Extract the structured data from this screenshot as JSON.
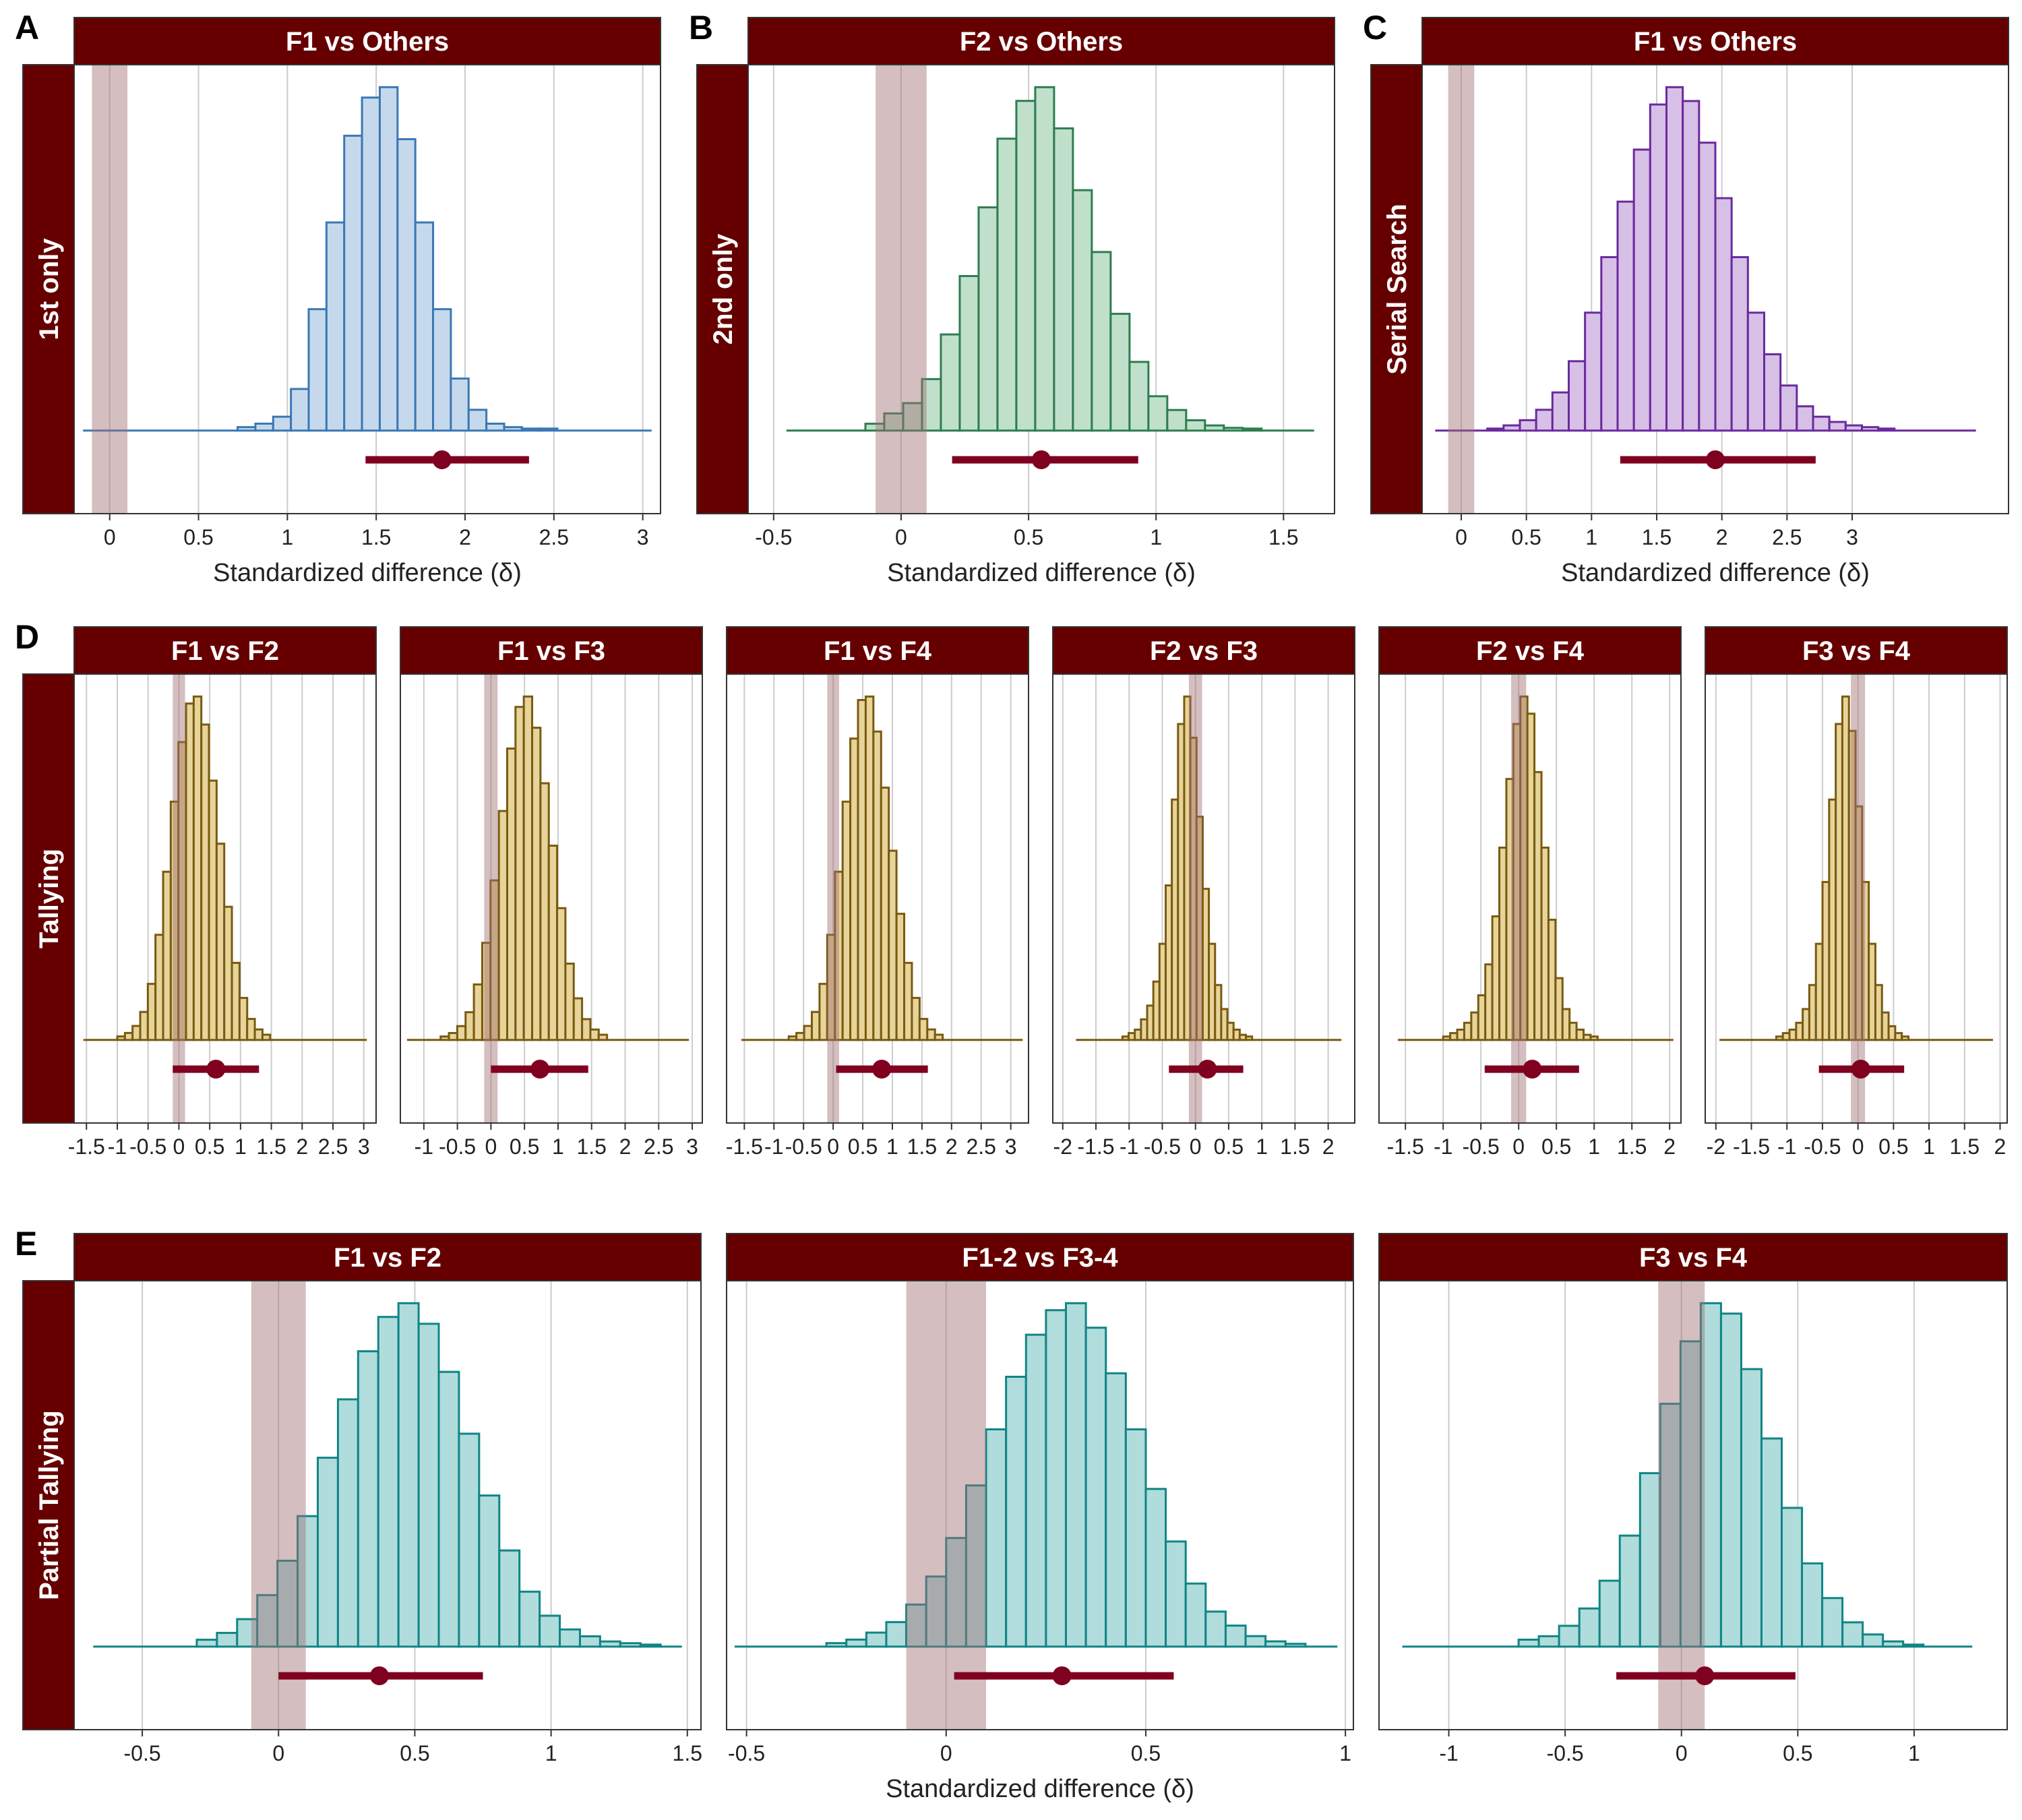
{
  "theme": {
    "strip_color": "#660000",
    "rope_color": "#a06e73",
    "interval_color": "#800020",
    "grid_color": "#cccccc",
    "axis_color": "#333333"
  },
  "chart_data": [
    {
      "id": "A",
      "letter": "A",
      "type": "bar",
      "row_label": "1st only",
      "title": "F1 vs Others",
      "xlabel": "Standardized difference (δ)",
      "xlim": [
        -0.2,
        3.1
      ],
      "xticks": [
        0,
        0.5,
        1,
        1.5,
        2,
        2.5,
        3
      ],
      "xtick_labels": [
        "0",
        "0.5",
        "1",
        "1.5",
        "2",
        "2.5",
        "3"
      ],
      "fill": "#c6d9ec",
      "stroke": "#3b78b4",
      "rope": [
        -0.1,
        0.1
      ],
      "interval": {
        "lower": 1.44,
        "point": 1.87,
        "upper": 2.36
      },
      "hist": {
        "start": 0.72,
        "bin_width": 0.1,
        "tail_left": -0.15,
        "tail_right": 3.05,
        "tail_level": 1,
        "counts": [
          1,
          2,
          4,
          12,
          35,
          60,
          85,
          96,
          99,
          84,
          60,
          35,
          15,
          6,
          2,
          1,
          0.5,
          0.3
        ]
      }
    },
    {
      "id": "B",
      "letter": "B",
      "type": "bar",
      "row_label": "2nd only",
      "title": "F2 vs Others",
      "xlabel": "Standardized difference (δ)",
      "xlim": [
        -0.6,
        1.7
      ],
      "xticks": [
        -0.5,
        0,
        0.5,
        1,
        1.5
      ],
      "xtick_labels": [
        "-0.5",
        "0",
        "0.5",
        "1",
        "1.5"
      ],
      "fill": "#c0e0cc",
      "stroke": "#2e7d4f",
      "rope": [
        -0.1,
        0.1
      ],
      "interval": {
        "lower": 0.2,
        "point": 0.55,
        "upper": 0.93
      },
      "hist": {
        "start": -0.14,
        "bin_width": 0.074,
        "tail_left": -0.45,
        "tail_right": 1.62,
        "tail_level": 0.5,
        "counts": [
          2,
          5,
          8,
          15,
          28,
          45,
          65,
          85,
          96,
          100,
          88,
          70,
          52,
          34,
          20,
          10,
          6,
          3,
          1.5,
          0.8,
          0.4
        ]
      }
    },
    {
      "id": "C",
      "letter": "C",
      "type": "bar",
      "row_label": "Serial Search",
      "title": "F1 vs Others",
      "xlabel": "Standardized difference (δ)",
      "xlim": [
        -0.3,
        4.2
      ],
      "xticks": [
        0,
        0.5,
        1,
        1.5,
        2,
        2.5,
        3
      ],
      "xtick_labels": [
        "0",
        "0.5",
        "1",
        "1.5",
        "2",
        "2.5",
        "3"
      ],
      "fill": "#d7c0e6",
      "stroke": "#6a2a9e",
      "rope": [
        -0.1,
        0.1
      ],
      "interval": {
        "lower": 1.22,
        "point": 1.95,
        "upper": 2.72
      },
      "hist": {
        "start": 0.2,
        "bin_width": 0.125,
        "tail_left": -0.2,
        "tail_right": 3.95,
        "tail_level": 1,
        "counts": [
          0.5,
          1.5,
          3,
          6,
          11,
          20,
          34,
          50,
          66,
          81,
          94,
          99,
          95,
          83,
          67,
          50,
          34,
          22,
          13,
          7,
          4,
          2.5,
          1.5,
          1,
          0.5
        ]
      }
    },
    {
      "id": "D1",
      "letter": "D",
      "type": "bar",
      "row_label": "Tallying",
      "title": "F1 vs F2",
      "xlabel": "",
      "xlim": [
        -1.7,
        3.2
      ],
      "xticks": [
        -1.5,
        -1,
        -0.5,
        0,
        0.5,
        1,
        1.5,
        2,
        2.5,
        3
      ],
      "xtick_labels": [
        "-1.5",
        "-1",
        "-0.5",
        "0",
        "0.5",
        "1",
        "1.5",
        "2",
        "2.5",
        "3"
      ],
      "fill": "#e6d49a",
      "stroke": "#7a5a10",
      "rope": [
        -0.1,
        0.1
      ],
      "interval": {
        "lower": -0.1,
        "point": 0.6,
        "upper": 1.3
      },
      "hist": {
        "start": -1.0,
        "bin_width": 0.124,
        "tail_left": -1.55,
        "tail_right": 3.05,
        "tail_level": 0.5,
        "counts": [
          1,
          2,
          4,
          8,
          16,
          30,
          48,
          68,
          85,
          96,
          98,
          90,
          74,
          56,
          38,
          22,
          12,
          6,
          3,
          1.5
        ]
      }
    },
    {
      "id": "D2",
      "letter": "",
      "type": "bar",
      "row_label": "",
      "title": "F1 vs F3",
      "xlabel": "",
      "xlim": [
        -1.35,
        3.15
      ],
      "xticks": [
        -1,
        -0.5,
        0,
        0.5,
        1,
        1.5,
        2,
        2.5,
        3
      ],
      "xtick_labels": [
        "-1",
        "-0.5",
        "0",
        "0.5",
        "1",
        "1.5",
        "2",
        "2.5",
        "3"
      ],
      "fill": "#e6d49a",
      "stroke": "#7a5a10",
      "rope": [
        -0.1,
        0.1
      ],
      "interval": {
        "lower": 0.0,
        "point": 0.73,
        "upper": 1.45
      },
      "hist": {
        "start": -0.75,
        "bin_width": 0.124,
        "tail_left": -1.25,
        "tail_right": 2.95,
        "tail_level": 0.5,
        "counts": [
          1,
          2,
          4,
          8,
          16,
          28,
          46,
          66,
          84,
          96,
          99,
          90,
          74,
          56,
          38,
          22,
          12,
          6,
          3,
          1.5
        ]
      }
    },
    {
      "id": "D3",
      "letter": "",
      "type": "bar",
      "row_label": "",
      "title": "F1 vs F4",
      "xlabel": "",
      "xlim": [
        -1.8,
        3.3
      ],
      "xticks": [
        -1.5,
        -1,
        -0.5,
        0,
        0.5,
        1,
        1.5,
        2,
        2.5,
        3
      ],
      "xtick_labels": [
        "-1.5",
        "-1",
        "-0.5",
        "0",
        "0.5",
        "1",
        "1.5",
        "2",
        "2.5",
        "3"
      ],
      "fill": "#e6d49a",
      "stroke": "#7a5a10",
      "rope": [
        -0.1,
        0.1
      ],
      "interval": {
        "lower": 0.05,
        "point": 0.82,
        "upper": 1.6
      },
      "hist": {
        "start": -0.75,
        "bin_width": 0.13,
        "tail_left": -1.55,
        "tail_right": 3.2,
        "tail_level": 0.5,
        "counts": [
          1,
          2,
          4,
          8,
          16,
          30,
          48,
          68,
          86,
          97,
          98,
          88,
          72,
          54,
          36,
          22,
          12,
          6,
          3,
          1.5
        ]
      }
    },
    {
      "id": "D4",
      "letter": "",
      "type": "bar",
      "row_label": "",
      "title": "F2 vs F3",
      "xlabel": "",
      "xlim": [
        -2.15,
        2.4
      ],
      "xticks": [
        -2,
        -1.5,
        -1,
        -0.5,
        0,
        0.5,
        1,
        1.5,
        2
      ],
      "xtick_labels": [
        "-2",
        "-1.5",
        "-1",
        "-0.5",
        "0",
        "0.5",
        "1",
        "1.5",
        "2"
      ],
      "fill": "#e6d49a",
      "stroke": "#7a5a10",
      "rope": [
        -0.1,
        0.1
      ],
      "interval": {
        "lower": -0.4,
        "point": 0.18,
        "upper": 0.72
      },
      "hist": {
        "start": -1.1,
        "bin_width": 0.093,
        "tail_left": -1.8,
        "tail_right": 2.2,
        "tail_level": 0.5,
        "counts": [
          1,
          2,
          3,
          6,
          10,
          17,
          28,
          45,
          70,
          92,
          100,
          88,
          65,
          44,
          28,
          16,
          9,
          5,
          3,
          1.5,
          1
        ]
      }
    },
    {
      "id": "D5",
      "letter": "",
      "type": "bar",
      "row_label": "",
      "title": "F2 vs F4",
      "xlabel": "",
      "xlim": [
        -1.85,
        2.15
      ],
      "xticks": [
        -1.5,
        -1,
        -0.5,
        0,
        0.5,
        1,
        1.5,
        2
      ],
      "xtick_labels": [
        "-1.5",
        "-1",
        "-0.5",
        "0",
        "0.5",
        "1",
        "1.5",
        "2"
      ],
      "fill": "#e6d49a",
      "stroke": "#7a5a10",
      "rope": [
        -0.1,
        0.1
      ],
      "interval": {
        "lower": -0.45,
        "point": 0.18,
        "upper": 0.8
      },
      "hist": {
        "start": -1.0,
        "bin_width": 0.093,
        "tail_left": -1.6,
        "tail_right": 2.05,
        "tail_level": 0.5,
        "counts": [
          1,
          2,
          3,
          5,
          8,
          13,
          22,
          36,
          56,
          76,
          92,
          100,
          95,
          78,
          56,
          35,
          18,
          9,
          5,
          3,
          1.5,
          1
        ]
      }
    },
    {
      "id": "D6",
      "letter": "",
      "type": "bar",
      "row_label": "",
      "title": "F3 vs F4",
      "xlabel": "",
      "xlim": [
        -2.15,
        2.1
      ],
      "xticks": [
        -2,
        -1.5,
        -1,
        -0.5,
        0,
        0.5,
        1,
        1.5,
        2
      ],
      "xtick_labels": [
        "-2",
        "-1.5",
        "-1",
        "-0.5",
        "0",
        "0.5",
        "1",
        "1.5",
        "2"
      ],
      "fill": "#e6d49a",
      "stroke": "#7a5a10",
      "rope": [
        -0.1,
        0.1
      ],
      "interval": {
        "lower": -0.55,
        "point": 0.04,
        "upper": 0.65
      },
      "hist": {
        "start": -1.15,
        "bin_width": 0.093,
        "tail_left": -1.95,
        "tail_right": 1.9,
        "tail_level": 0.5,
        "counts": [
          1,
          2,
          3,
          5,
          9,
          16,
          28,
          46,
          70,
          92,
          100,
          90,
          68,
          46,
          28,
          16,
          8,
          4,
          2,
          1
        ]
      }
    },
    {
      "id": "E1",
      "letter": "E",
      "type": "bar",
      "row_label": "Partial Tallying",
      "title": "F1 vs F2",
      "xlabel": "",
      "xlim": [
        -0.75,
        1.55
      ],
      "xticks": [
        -0.5,
        0,
        0.5,
        1,
        1.5
      ],
      "xtick_labels": [
        "-0.5",
        "0",
        "0.5",
        "1",
        "1.5"
      ],
      "fill": "#b0dcdc",
      "stroke": "#108585",
      "rope": [
        -0.1,
        0.1
      ],
      "interval": {
        "lower": 0.0,
        "point": 0.37,
        "upper": 0.75
      },
      "hist": {
        "start": -0.3,
        "bin_width": 0.074,
        "tail_left": -0.68,
        "tail_right": 1.48,
        "tail_level": 0.5,
        "counts": [
          2,
          4,
          8,
          15,
          25,
          38,
          55,
          72,
          86,
          96,
          100,
          94,
          80,
          62,
          44,
          28,
          16,
          9,
          5,
          3,
          1.5,
          1,
          0.5
        ]
      }
    },
    {
      "id": "E2",
      "letter": "",
      "type": "bar",
      "row_label": "",
      "title": "F1-2 vs F3-4",
      "xlabel": "Standardized difference (δ)",
      "xlim": [
        -0.55,
        1.02
      ],
      "xticks": [
        -0.5,
        0,
        0.5,
        1
      ],
      "xtick_labels": [
        "-0.5",
        "0",
        "0.5",
        "1"
      ],
      "fill": "#b0dcdc",
      "stroke": "#108585",
      "rope": [
        -0.1,
        0.1
      ],
      "interval": {
        "lower": 0.02,
        "point": 0.29,
        "upper": 0.57
      },
      "hist": {
        "start": -0.3,
        "bin_width": 0.05,
        "tail_left": -0.53,
        "tail_right": 0.98,
        "tail_level": 0.5,
        "counts": [
          1,
          2,
          4,
          7,
          12,
          20,
          31,
          46,
          62,
          77,
          89,
          96,
          98,
          91,
          78,
          62,
          45,
          30,
          18,
          10,
          6,
          3,
          1.5,
          0.8
        ]
      }
    },
    {
      "id": "E3",
      "letter": "",
      "type": "bar",
      "row_label": "",
      "title": "F3 vs F4",
      "xlabel": "",
      "xlim": [
        -1.3,
        1.4
      ],
      "xticks": [
        -1,
        -0.5,
        0,
        0.5,
        1
      ],
      "xtick_labels": [
        "-1",
        "-0.5",
        "0",
        "0.5",
        "1"
      ],
      "fill": "#b0dcdc",
      "stroke": "#108585",
      "rope": [
        -0.1,
        0.1
      ],
      "interval": {
        "lower": -0.28,
        "point": 0.1,
        "upper": 0.49
      },
      "hist": {
        "start": -0.7,
        "bin_width": 0.087,
        "tail_left": -1.2,
        "tail_right": 1.25,
        "tail_level": 0.5,
        "counts": [
          2,
          3,
          6,
          11,
          19,
          32,
          50,
          70,
          88,
          99,
          96,
          80,
          60,
          40,
          24,
          14,
          7,
          3.5,
          1.5,
          0.5
        ]
      }
    }
  ]
}
